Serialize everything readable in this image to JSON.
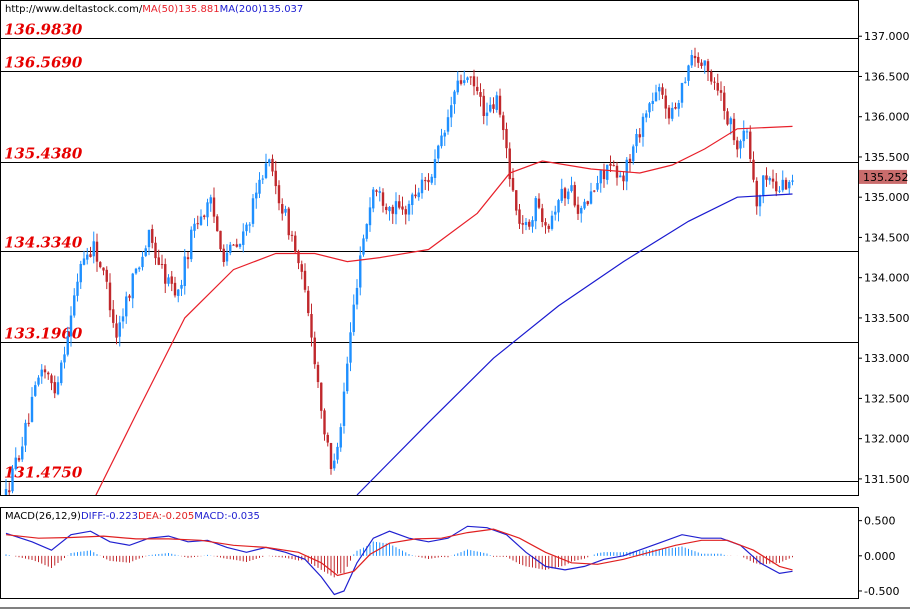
{
  "header": {
    "url": "http://www.deltastock.com/",
    "ma50_label": "MA(50)",
    "ma50_value": "135.881",
    "ma200_label": "MA(200)",
    "ma200_value": "135.037"
  },
  "colors": {
    "up_candle": "#1e90ff",
    "down_candle": "#c0282c",
    "ma50": "#e8202a",
    "ma200": "#1a1ad0",
    "level_text": "#e60000",
    "macd_diff": "#2020d0",
    "macd_dea": "#e02020",
    "current_box": "#c96c6c"
  },
  "macd_header": {
    "name": "MACD(26,12,9)",
    "diff_label": "DIFF:",
    "diff_value": "-0.223",
    "dea_label": "DEA:",
    "dea_value": "-0.205",
    "macd_label": "MACD:",
    "macd_value": "-0.035"
  },
  "current_price": "135.252",
  "chart_data": {
    "type": "candlestick",
    "price_ylim": [
      131.3,
      137.45
    ],
    "price_ticks": [
      "137.000",
      "136.500",
      "136.000",
      "135.500",
      "135.000",
      "134.500",
      "134.000",
      "133.500",
      "133.000",
      "132.500",
      "132.000",
      "131.500"
    ],
    "levels": [
      {
        "label": "136.9830",
        "value": 136.983
      },
      {
        "label": "136.5690",
        "value": 136.569
      },
      {
        "label": "135.4380",
        "value": 135.438
      },
      {
        "label": "134.3340",
        "value": 134.334
      },
      {
        "label": "133.1960",
        "value": 133.196
      },
      {
        "label": "131.4750",
        "value": 131.475
      }
    ],
    "price_path": [
      [
        0,
        131.3
      ],
      [
        6,
        132.1
      ],
      [
        11,
        132.9
      ],
      [
        15,
        132.6
      ],
      [
        20,
        133.5
      ],
      [
        23,
        134.2
      ],
      [
        27,
        134.4
      ],
      [
        31,
        133.9
      ],
      [
        34,
        133.3
      ],
      [
        39,
        134.0
      ],
      [
        44,
        134.5
      ],
      [
        49,
        134.0
      ],
      [
        53,
        133.8
      ],
      [
        58,
        134.7
      ],
      [
        63,
        134.9
      ],
      [
        67,
        134.3
      ],
      [
        72,
        134.4
      ],
      [
        77,
        135.0
      ],
      [
        80,
        135.5
      ],
      [
        84,
        135.0
      ],
      [
        88,
        134.5
      ],
      [
        91,
        134.0
      ],
      [
        94,
        133.3
      ],
      [
        98,
        132.1
      ],
      [
        100,
        131.6
      ],
      [
        103,
        132.2
      ],
      [
        106,
        133.3
      ],
      [
        109,
        134.3
      ],
      [
        113,
        135.1
      ],
      [
        118,
        134.9
      ],
      [
        122,
        134.8
      ],
      [
        127,
        135.1
      ],
      [
        131,
        135.3
      ],
      [
        135,
        135.8
      ],
      [
        138,
        136.3
      ],
      [
        141,
        136.5
      ],
      [
        145,
        136.3
      ],
      [
        148,
        136.0
      ],
      [
        151,
        136.2
      ],
      [
        154,
        135.6
      ],
      [
        157,
        134.8
      ],
      [
        160,
        134.6
      ],
      [
        163,
        134.9
      ],
      [
        167,
        134.7
      ],
      [
        170,
        135.0
      ],
      [
        174,
        135.1
      ],
      [
        177,
        134.8
      ],
      [
        181,
        135.1
      ],
      [
        185,
        135.4
      ],
      [
        189,
        135.2
      ],
      [
        193,
        135.6
      ],
      [
        197,
        136.1
      ],
      [
        201,
        136.3
      ],
      [
        205,
        136.0
      ],
      [
        208,
        136.4
      ],
      [
        211,
        136.8
      ],
      [
        215,
        136.6
      ],
      [
        219,
        136.4
      ],
      [
        222,
        136.0
      ],
      [
        225,
        135.7
      ],
      [
        228,
        135.8
      ],
      [
        231,
        134.9
      ],
      [
        234,
        135.3
      ],
      [
        237,
        135.1
      ],
      [
        240,
        135.2
      ],
      [
        242,
        135.25
      ]
    ],
    "ma50_path": [
      [
        24,
        131.0
      ],
      [
        40,
        132.3
      ],
      [
        55,
        133.5
      ],
      [
        70,
        134.1
      ],
      [
        83,
        134.3
      ],
      [
        95,
        134.3
      ],
      [
        105,
        134.2
      ],
      [
        115,
        134.25
      ],
      [
        130,
        134.35
      ],
      [
        145,
        134.8
      ],
      [
        155,
        135.3
      ],
      [
        165,
        135.45
      ],
      [
        180,
        135.35
      ],
      [
        195,
        135.3
      ],
      [
        205,
        135.4
      ],
      [
        215,
        135.6
      ],
      [
        225,
        135.85
      ],
      [
        242,
        135.88
      ]
    ],
    "ma200_path": [
      [
        108,
        131.3
      ],
      [
        130,
        132.2
      ],
      [
        150,
        133.0
      ],
      [
        170,
        133.65
      ],
      [
        190,
        134.2
      ],
      [
        210,
        134.7
      ],
      [
        225,
        135.0
      ],
      [
        242,
        135.04
      ]
    ],
    "macd_ylim": [
      -0.6,
      0.68
    ],
    "macd_ticks": [
      "0.500",
      "0.000",
      "-0.500"
    ],
    "diff_path": [
      [
        0,
        0.32
      ],
      [
        8,
        0.2
      ],
      [
        14,
        0.08
      ],
      [
        20,
        0.3
      ],
      [
        26,
        0.35
      ],
      [
        32,
        0.2
      ],
      [
        38,
        0.15
      ],
      [
        44,
        0.25
      ],
      [
        50,
        0.28
      ],
      [
        56,
        0.2
      ],
      [
        62,
        0.22
      ],
      [
        68,
        0.12
      ],
      [
        74,
        0.05
      ],
      [
        80,
        0.12
      ],
      [
        86,
        0.05
      ],
      [
        92,
        -0.05
      ],
      [
        97,
        -0.3
      ],
      [
        101,
        -0.55
      ],
      [
        104,
        -0.5
      ],
      [
        108,
        -0.1
      ],
      [
        113,
        0.25
      ],
      [
        118,
        0.35
      ],
      [
        124,
        0.25
      ],
      [
        130,
        0.2
      ],
      [
        136,
        0.25
      ],
      [
        142,
        0.42
      ],
      [
        148,
        0.4
      ],
      [
        154,
        0.3
      ],
      [
        160,
        0.05
      ],
      [
        166,
        -0.15
      ],
      [
        172,
        -0.2
      ],
      [
        178,
        -0.15
      ],
      [
        184,
        -0.05
      ],
      [
        190,
        0.0
      ],
      [
        196,
        0.1
      ],
      [
        202,
        0.2
      ],
      [
        208,
        0.3
      ],
      [
        214,
        0.25
      ],
      [
        220,
        0.25
      ],
      [
        226,
        0.15
      ],
      [
        232,
        -0.1
      ],
      [
        238,
        -0.25
      ],
      [
        242,
        -0.22
      ]
    ],
    "dea_path": [
      [
        0,
        0.3
      ],
      [
        10,
        0.25
      ],
      [
        20,
        0.26
      ],
      [
        30,
        0.28
      ],
      [
        40,
        0.24
      ],
      [
        50,
        0.24
      ],
      [
        60,
        0.22
      ],
      [
        70,
        0.15
      ],
      [
        80,
        0.12
      ],
      [
        90,
        0.05
      ],
      [
        97,
        -0.1
      ],
      [
        102,
        -0.28
      ],
      [
        107,
        -0.22
      ],
      [
        112,
        0.02
      ],
      [
        118,
        0.18
      ],
      [
        126,
        0.24
      ],
      [
        134,
        0.25
      ],
      [
        142,
        0.33
      ],
      [
        150,
        0.38
      ],
      [
        158,
        0.25
      ],
      [
        166,
        0.05
      ],
      [
        174,
        -0.1
      ],
      [
        182,
        -0.12
      ],
      [
        190,
        -0.05
      ],
      [
        198,
        0.05
      ],
      [
        206,
        0.15
      ],
      [
        214,
        0.22
      ],
      [
        222,
        0.22
      ],
      [
        230,
        0.08
      ],
      [
        238,
        -0.15
      ],
      [
        242,
        -0.2
      ]
    ]
  }
}
